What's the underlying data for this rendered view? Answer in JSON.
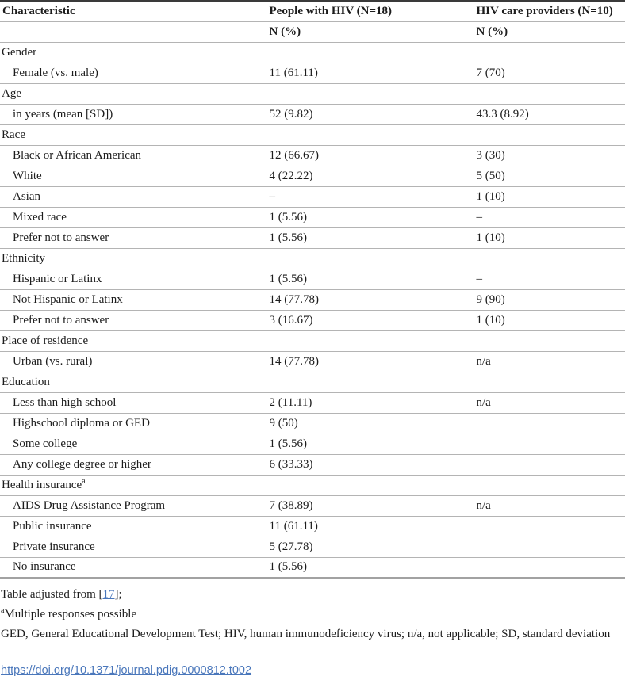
{
  "colors": {
    "link_blue": "#4a77bb",
    "table_top_border": "#3a3a3a",
    "grid_line": "#b4b4b4"
  },
  "table": {
    "columns": [
      "Characteristic",
      "People with HIV (N=18)",
      "HIV care providers (N=10)"
    ],
    "subheader": [
      "",
      "N (%)",
      "N (%)"
    ],
    "sections": [
      {
        "title": "Gender",
        "rows": [
          [
            "Female (vs. male)",
            "11 (61.11)",
            "7 (70)"
          ]
        ]
      },
      {
        "title": "Age",
        "rows": [
          [
            "in years (mean [SD])",
            "52 (9.82)",
            "43.3 (8.92)"
          ]
        ]
      },
      {
        "title": "Race",
        "rows": [
          [
            "Black or African American",
            "12 (66.67)",
            "3 (30)"
          ],
          [
            "White",
            "4 (22.22)",
            "5 (50)"
          ],
          [
            "Asian",
            "–",
            "1 (10)"
          ],
          [
            "Mixed race",
            "1 (5.56)",
            "–"
          ],
          [
            "Prefer not to answer",
            "1 (5.56)",
            "1 (10)"
          ]
        ]
      },
      {
        "title": "Ethnicity",
        "rows": [
          [
            "Hispanic or Latinx",
            "1 (5.56)",
            "–"
          ],
          [
            "Not Hispanic or Latinx",
            "14 (77.78)",
            "9 (90)"
          ],
          [
            "Prefer not to answer",
            "3 (16.67)",
            "1 (10)"
          ]
        ]
      },
      {
        "title": "Place of residence",
        "rows": [
          [
            "Urban (vs. rural)",
            "14 (77.78)",
            "n/a"
          ]
        ]
      },
      {
        "title": "Education",
        "rows": [
          [
            "Less than high school",
            "2 (11.11)",
            "n/a"
          ],
          [
            "Highschool diploma or GED",
            "9 (50)",
            ""
          ],
          [
            "Some college",
            "1 (5.56)",
            ""
          ],
          [
            "Any college degree or higher",
            "6 (33.33)",
            ""
          ]
        ]
      },
      {
        "title": "Health insurance",
        "title_superscript": "a",
        "rows": [
          [
            "AIDS Drug Assistance Program",
            "7 (38.89)",
            "n/a"
          ],
          [
            "Public insurance",
            "11 (61.11)",
            ""
          ],
          [
            "Private insurance",
            "5 (27.78)",
            ""
          ],
          [
            "No insurance",
            "1 (5.56)",
            ""
          ]
        ]
      }
    ]
  },
  "footnotes": {
    "adjusted_prefix": "Table adjusted from [",
    "adjusted_link": "17",
    "adjusted_suffix": "];",
    "multiple_superscript": "a",
    "multiple_text": "Multiple responses possible",
    "abbreviations": "GED, General Educational Development Test; HIV, human immunodeficiency virus; n/a, not applicable; SD, standard deviation"
  },
  "doi": {
    "text": "https://doi.org/10.1371/journal.pdig.0000812.t002"
  }
}
